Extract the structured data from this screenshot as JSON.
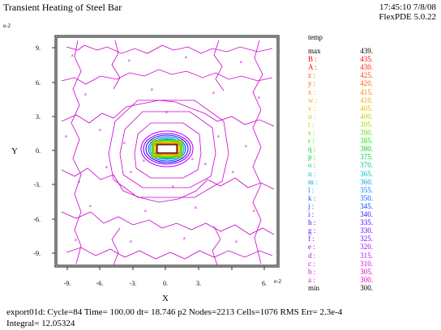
{
  "title": "Transient Heating of Steel Bar",
  "timestamp": {
    "line1": "17:45:10 7/8/08",
    "line2": "FlexPDE 5.0.22"
  },
  "scale_exponent": "e-2",
  "axes": {
    "xlabel": "X",
    "ylabel": "Y",
    "x_ticks": [
      "-9.",
      "-6.",
      "-3.",
      "0.",
      "3.",
      "6."
    ],
    "y_ticks": [
      "9.",
      "6.",
      "3.",
      "0.",
      "-3.",
      "-6.",
      "-9."
    ]
  },
  "legend": {
    "title": "temp",
    "entries": [
      {
        "label": "max",
        "value": "439.",
        "color": "#000000"
      },
      {
        "label": "B :",
        "value": "435.",
        "color": "#ff0000"
      },
      {
        "label": "A :",
        "value": "430.",
        "color": "#ff2000"
      },
      {
        "label": "z :",
        "value": "425.",
        "color": "#ff4000"
      },
      {
        "label": "y :",
        "value": "420.",
        "color": "#ff6000"
      },
      {
        "label": "x :",
        "value": "415.",
        "color": "#ff8000"
      },
      {
        "label": "w :",
        "value": "410.",
        "color": "#ffa000"
      },
      {
        "label": "v :",
        "value": "405.",
        "color": "#e0c000"
      },
      {
        "label": "u :",
        "value": "400.",
        "color": "#c0d000"
      },
      {
        "label": "t :",
        "value": "395.",
        "color": "#a0e000"
      },
      {
        "label": "s :",
        "value": "390.",
        "color": "#60e000"
      },
      {
        "label": "r :",
        "value": "385.",
        "color": "#20e000"
      },
      {
        "label": "q :",
        "value": "380.",
        "color": "#00d800"
      },
      {
        "label": "p :",
        "value": "375.",
        "color": "#00c040"
      },
      {
        "label": "o :",
        "value": "370.",
        "color": "#00c080"
      },
      {
        "label": "n :",
        "value": "365.",
        "color": "#00c0c0"
      },
      {
        "label": "m :",
        "value": "360.",
        "color": "#00a0e0"
      },
      {
        "label": "l :",
        "value": "355.",
        "color": "#0080ff"
      },
      {
        "label": "k :",
        "value": "350.",
        "color": "#0060ff"
      },
      {
        "label": "j :",
        "value": "345.",
        "color": "#0040ff"
      },
      {
        "label": "i :",
        "value": "340.",
        "color": "#2020ff"
      },
      {
        "label": "h :",
        "value": "335.",
        "color": "#4000ff"
      },
      {
        "label": "g :",
        "value": "330.",
        "color": "#6000ff"
      },
      {
        "label": "f :",
        "value": "325.",
        "color": "#8000ff"
      },
      {
        "label": "e :",
        "value": "320.",
        "color": "#a000ff"
      },
      {
        "label": "d :",
        "value": "315.",
        "color": "#c000ff"
      },
      {
        "label": "c :",
        "value": "310.",
        "color": "#d000e0"
      },
      {
        "label": "b :",
        "value": "305.",
        "color": "#e000d0"
      },
      {
        "label": "a :",
        "value": "300.",
        "color": "#f000c0"
      },
      {
        "label": "min",
        "value": "300.",
        "color": "#000000"
      }
    ]
  },
  "footer": {
    "line1": "export01d:  Cycle=84  Time= 100.00  dt= 18.746  p2  Nodes=2213  Cells=1076  RMS Err= 2.3e-4",
    "line2": "Integral=  12.05324"
  }
}
